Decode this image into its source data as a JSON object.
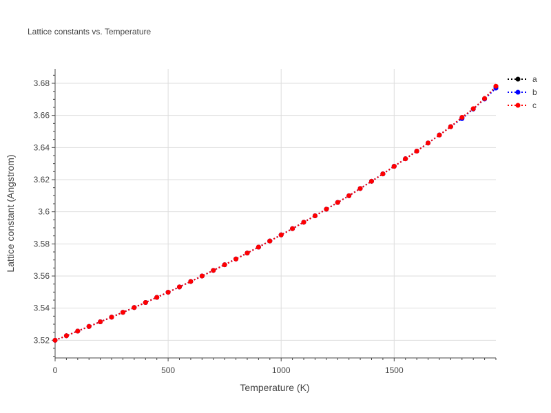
{
  "chart_data": {
    "type": "line",
    "title": "Lattice constants vs. Temperature",
    "xlabel": "Temperature (K)",
    "ylabel": "Lattice constant (Angstrom)",
    "xlim": [
      0,
      1950
    ],
    "ylim": [
      3.509,
      3.689
    ],
    "xticks": [
      0,
      500,
      1000,
      1500
    ],
    "xtick_labels": [
      "0",
      "500",
      "1000",
      "1500"
    ],
    "yticks": [
      3.52,
      3.54,
      3.56,
      3.58,
      3.6,
      3.62,
      3.64,
      3.66,
      3.68
    ],
    "ytick_labels": [
      "3.52",
      "3.54",
      "3.56",
      "3.58",
      "3.6",
      "3.62",
      "3.64",
      "3.66",
      "3.68"
    ],
    "grid": true,
    "legend_position": "top-right",
    "line_style": "dotted with markers",
    "x": [
      0,
      50,
      100,
      150,
      200,
      250,
      300,
      350,
      400,
      450,
      500,
      550,
      600,
      650,
      700,
      750,
      800,
      850,
      900,
      950,
      1000,
      1050,
      1100,
      1150,
      1200,
      1250,
      1300,
      1350,
      1400,
      1450,
      1500,
      1550,
      1600,
      1650,
      1700,
      1750,
      1800,
      1850,
      1900,
      1950
    ],
    "series": [
      {
        "name": "a",
        "color": "#000000",
        "values": [
          3.52,
          3.5228,
          3.5257,
          3.5286,
          3.5315,
          3.5344,
          3.5374,
          3.5404,
          3.5435,
          3.5467,
          3.5499,
          3.5532,
          3.5566,
          3.56,
          3.5635,
          3.567,
          3.5706,
          3.5743,
          3.578,
          3.5818,
          3.5856,
          3.5895,
          3.5935,
          3.5975,
          3.6016,
          3.6058,
          3.61,
          3.6145,
          3.619,
          3.6236,
          3.6283,
          3.633,
          3.6378,
          3.6428,
          3.6478,
          3.653,
          3.6585,
          3.664,
          3.6705,
          3.678
        ]
      },
      {
        "name": "b",
        "color": "#0000ff",
        "values": [
          3.52,
          3.5228,
          3.5257,
          3.5286,
          3.5315,
          3.5344,
          3.5374,
          3.5404,
          3.5435,
          3.5467,
          3.5499,
          3.5532,
          3.5566,
          3.56,
          3.5635,
          3.567,
          3.5706,
          3.5743,
          3.578,
          3.5818,
          3.5856,
          3.5895,
          3.5935,
          3.5975,
          3.6016,
          3.6058,
          3.61,
          3.6145,
          3.619,
          3.6236,
          3.6283,
          3.633,
          3.6378,
          3.6428,
          3.6478,
          3.653,
          3.658,
          3.664,
          3.6702,
          3.677
        ]
      },
      {
        "name": "c",
        "color": "#ff0000",
        "values": [
          3.52,
          3.5228,
          3.5257,
          3.5286,
          3.5315,
          3.5344,
          3.5374,
          3.5404,
          3.5435,
          3.5467,
          3.5499,
          3.5532,
          3.5566,
          3.56,
          3.5635,
          3.567,
          3.5706,
          3.5743,
          3.578,
          3.5818,
          3.5856,
          3.5895,
          3.5935,
          3.5975,
          3.6016,
          3.6058,
          3.61,
          3.6145,
          3.619,
          3.6236,
          3.6283,
          3.633,
          3.6378,
          3.6428,
          3.6478,
          3.653,
          3.6588,
          3.6642,
          3.6705,
          3.6782
        ]
      }
    ]
  }
}
